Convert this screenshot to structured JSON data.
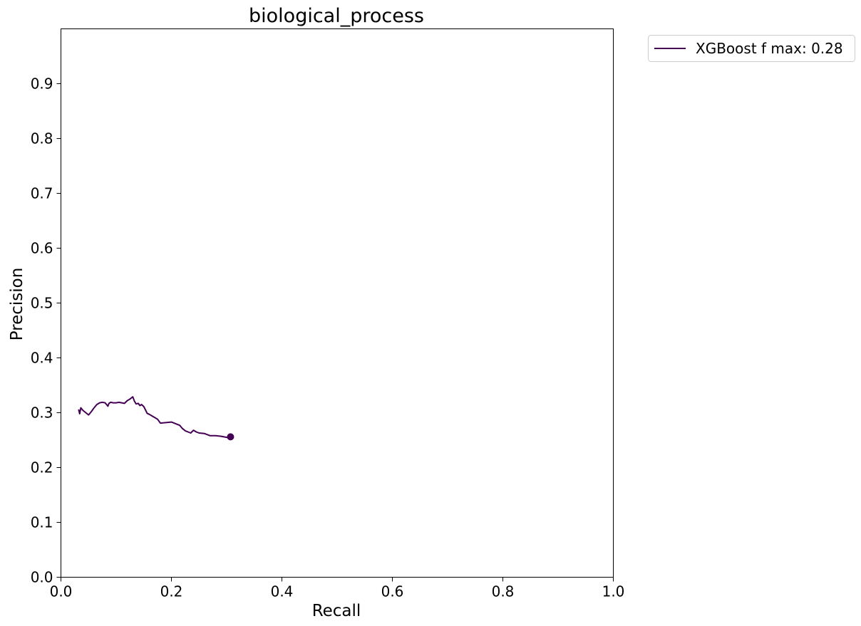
{
  "chart_data": {
    "type": "line",
    "title": "biological_process",
    "xlabel": "Recall",
    "ylabel": "Precision",
    "xlim": [
      0.0,
      1.0
    ],
    "ylim": [
      0.0,
      1.0
    ],
    "x_ticks": [
      "0.0",
      "0.2",
      "0.4",
      "0.6",
      "0.8",
      "1.0"
    ],
    "y_ticks": [
      "0.0",
      "0.1",
      "0.2",
      "0.3",
      "0.4",
      "0.5",
      "0.6",
      "0.7",
      "0.8",
      "0.9"
    ],
    "grid": false,
    "legend_position": "outside-top-right",
    "series": [
      {
        "name": "XGBoost f max: 0.28",
        "color": "#440154",
        "x": [
          0.032,
          0.034,
          0.036,
          0.04,
          0.045,
          0.05,
          0.055,
          0.06,
          0.065,
          0.07,
          0.075,
          0.08,
          0.085,
          0.087,
          0.09,
          0.095,
          0.1,
          0.105,
          0.11,
          0.115,
          0.12,
          0.125,
          0.13,
          0.133,
          0.136,
          0.14,
          0.143,
          0.146,
          0.15,
          0.153,
          0.156,
          0.16,
          0.165,
          0.17,
          0.175,
          0.18,
          0.19,
          0.2,
          0.21,
          0.215,
          0.22,
          0.225,
          0.23,
          0.235,
          0.24,
          0.245,
          0.25,
          0.26,
          0.27,
          0.28,
          0.29,
          0.295,
          0.3,
          0.307
        ],
        "y": [
          0.306,
          0.298,
          0.309,
          0.304,
          0.3,
          0.296,
          0.302,
          0.309,
          0.315,
          0.318,
          0.319,
          0.318,
          0.312,
          0.317,
          0.319,
          0.318,
          0.318,
          0.319,
          0.318,
          0.317,
          0.322,
          0.325,
          0.329,
          0.321,
          0.316,
          0.317,
          0.313,
          0.315,
          0.311,
          0.305,
          0.299,
          0.297,
          0.294,
          0.291,
          0.288,
          0.281,
          0.282,
          0.283,
          0.279,
          0.277,
          0.271,
          0.267,
          0.265,
          0.263,
          0.268,
          0.265,
          0.263,
          0.262,
          0.258,
          0.258,
          0.257,
          0.256,
          0.255,
          0.256
        ],
        "endpoint": {
          "x": 0.307,
          "y": 0.256
        }
      }
    ]
  }
}
